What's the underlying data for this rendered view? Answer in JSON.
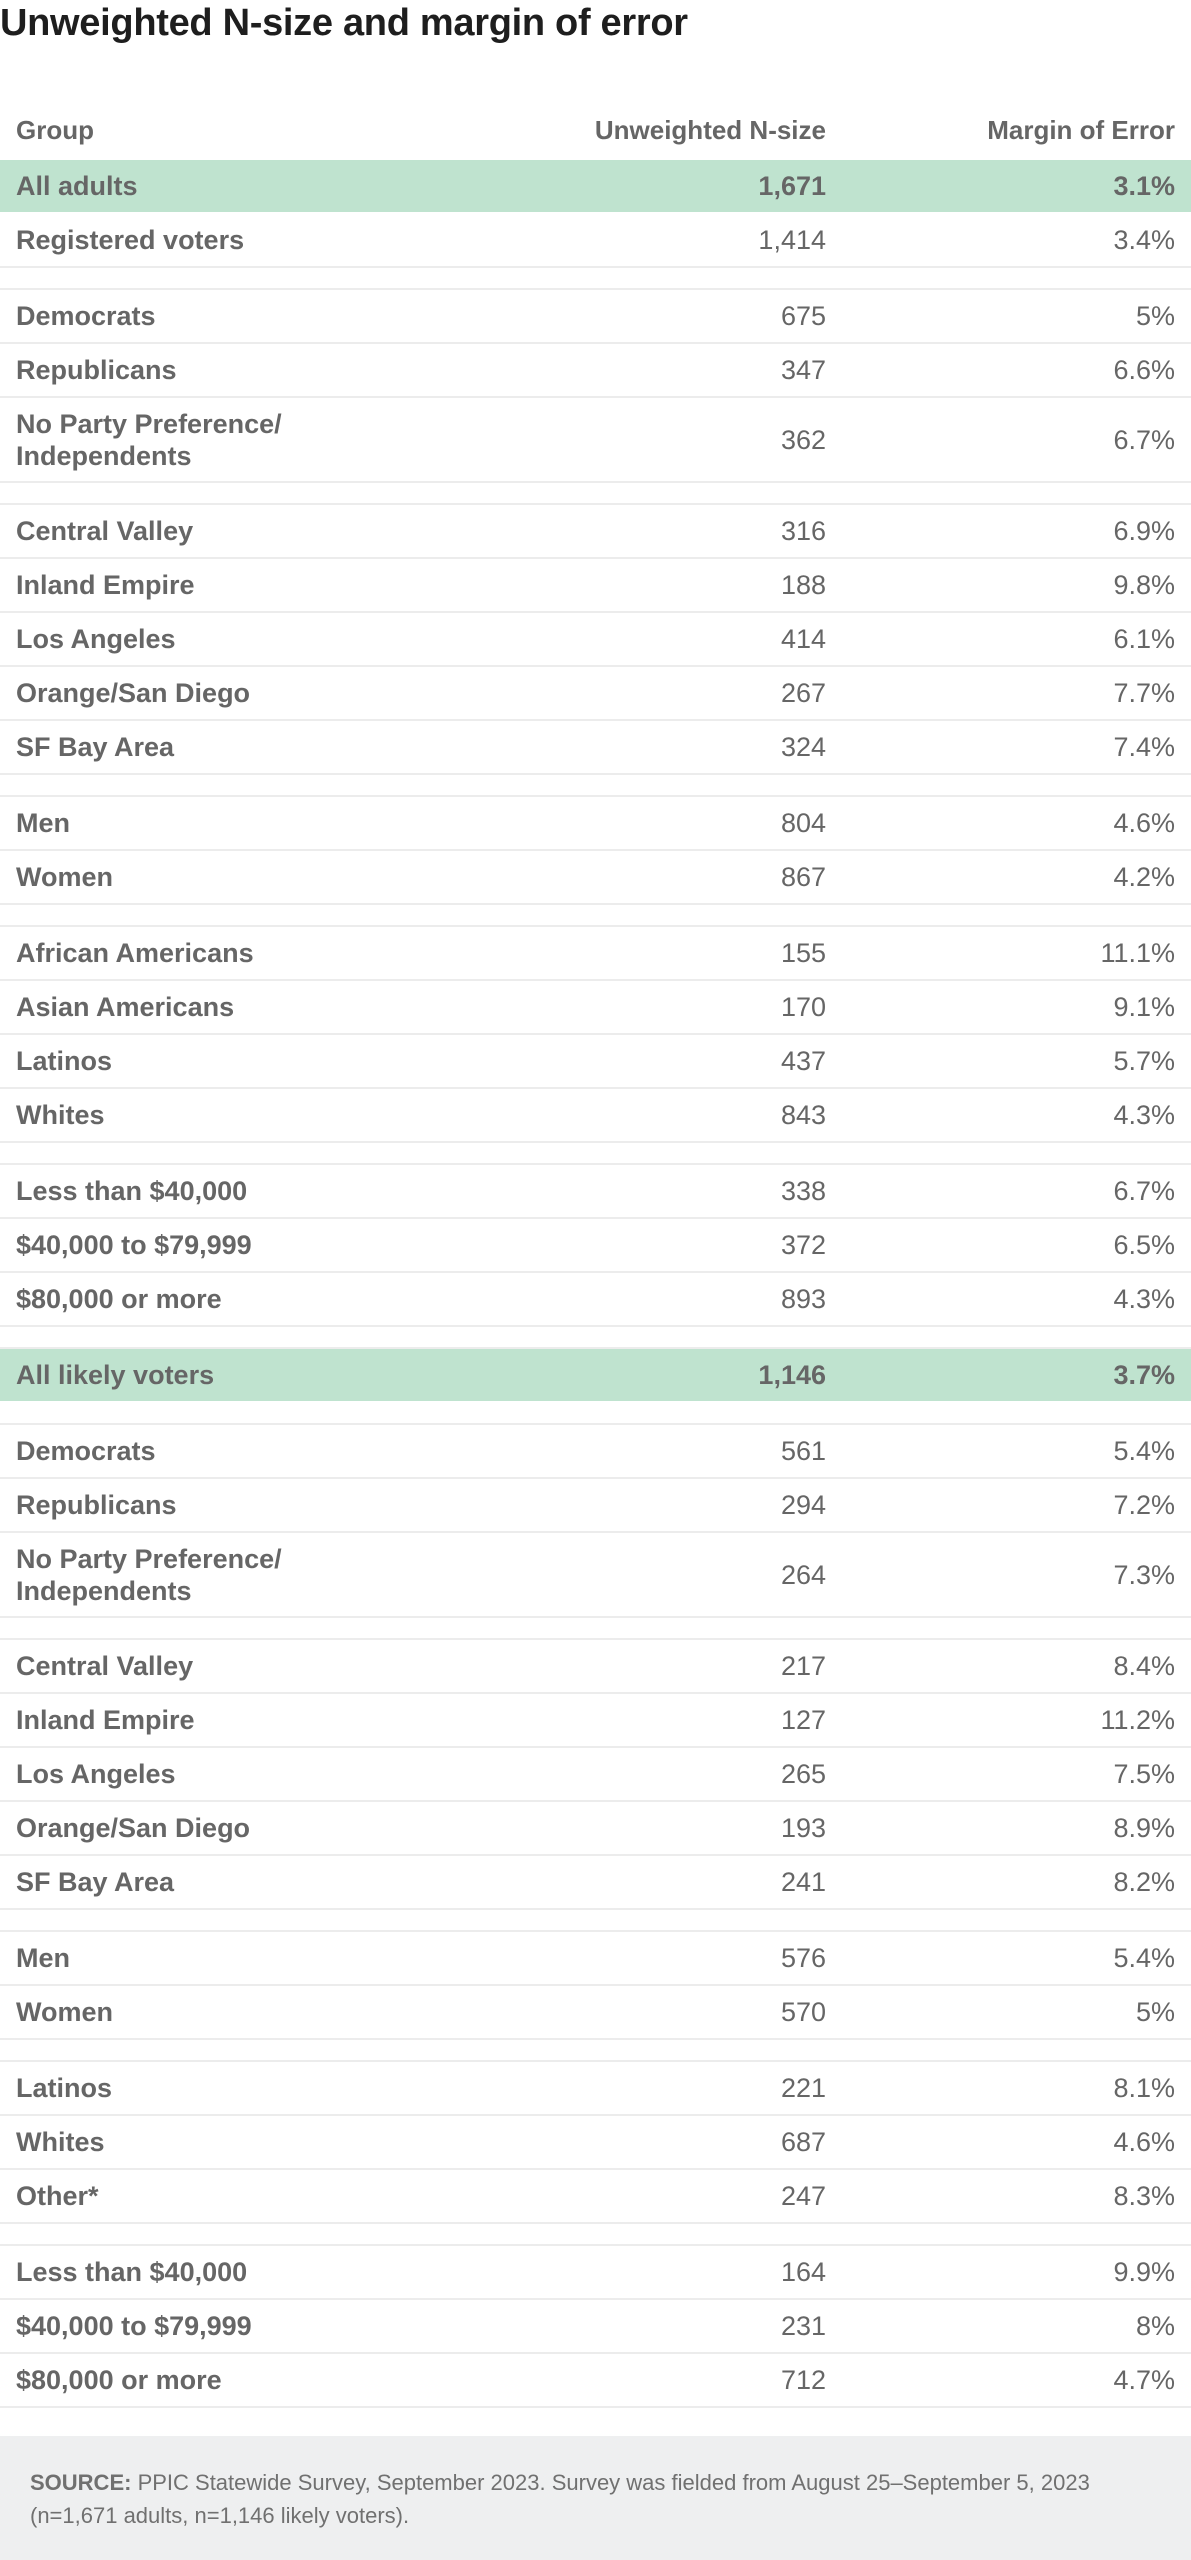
{
  "title": "Unweighted N-size and margin of error",
  "columns": {
    "group": "Group",
    "n": "Unweighted N-size",
    "moe": "Margin of Error"
  },
  "rows": [
    {
      "group": "All adults",
      "n": "1,671",
      "moe": "3.1%",
      "highlight": true
    },
    {
      "group": "Registered voters",
      "n": "1,414",
      "moe": "3.4%"
    },
    {
      "spacer": true
    },
    {
      "group": "Democrats",
      "n": "675",
      "moe": "5%"
    },
    {
      "group": "Republicans",
      "n": "347",
      "moe": "6.6%"
    },
    {
      "group": "No Party Preference/\nIndependents",
      "n": "362",
      "moe": "6.7%",
      "tall": true
    },
    {
      "spacer": true
    },
    {
      "group": "Central Valley",
      "n": "316",
      "moe": "6.9%"
    },
    {
      "group": "Inland Empire",
      "n": "188",
      "moe": "9.8%"
    },
    {
      "group": "Los Angeles",
      "n": "414",
      "moe": "6.1%"
    },
    {
      "group": "Orange/San Diego",
      "n": "267",
      "moe": "7.7%"
    },
    {
      "group": "SF Bay Area",
      "n": "324",
      "moe": "7.4%"
    },
    {
      "spacer": true
    },
    {
      "group": "Men",
      "n": "804",
      "moe": "4.6%"
    },
    {
      "group": "Women",
      "n": "867",
      "moe": "4.2%"
    },
    {
      "spacer": true
    },
    {
      "group": "African Americans",
      "n": "155",
      "moe": "11.1%"
    },
    {
      "group": "Asian Americans",
      "n": "170",
      "moe": "9.1%"
    },
    {
      "group": "Latinos",
      "n": "437",
      "moe": "5.7%"
    },
    {
      "group": "Whites",
      "n": "843",
      "moe": "4.3%"
    },
    {
      "spacer": true
    },
    {
      "group": "Less than $40,000",
      "n": "338",
      "moe": "6.7%"
    },
    {
      "group": "$40,000 to $79,999",
      "n": "372",
      "moe": "6.5%"
    },
    {
      "group": "$80,000 or more",
      "n": "893",
      "moe": "4.3%"
    },
    {
      "spacer": true
    },
    {
      "group": "All likely voters",
      "n": "1,146",
      "moe": "3.7%",
      "highlight": true
    },
    {
      "spacer": true
    },
    {
      "group": "Democrats",
      "n": "561",
      "moe": "5.4%"
    },
    {
      "group": "Republicans",
      "n": "294",
      "moe": "7.2%"
    },
    {
      "group": "No Party Preference/\nIndependents",
      "n": "264",
      "moe": "7.3%",
      "tall": true
    },
    {
      "spacer": true
    },
    {
      "group": "Central Valley",
      "n": "217",
      "moe": "8.4%"
    },
    {
      "group": "Inland Empire",
      "n": "127",
      "moe": "11.2%"
    },
    {
      "group": "Los Angeles",
      "n": "265",
      "moe": "7.5%"
    },
    {
      "group": "Orange/San Diego",
      "n": "193",
      "moe": "8.9%"
    },
    {
      "group": "SF Bay Area",
      "n": "241",
      "moe": "8.2%"
    },
    {
      "spacer": true
    },
    {
      "group": "Men",
      "n": "576",
      "moe": "5.4%"
    },
    {
      "group": "Women",
      "n": "570",
      "moe": "5%"
    },
    {
      "spacer": true
    },
    {
      "group": "Latinos",
      "n": "221",
      "moe": "8.1%"
    },
    {
      "group": "Whites",
      "n": "687",
      "moe": "4.6%"
    },
    {
      "group": "Other*",
      "n": "247",
      "moe": "8.3%"
    },
    {
      "spacer": true
    },
    {
      "group": "Less than $40,000",
      "n": "164",
      "moe": "9.9%"
    },
    {
      "group": "$40,000 to $79,999",
      "n": "231",
      "moe": "8%"
    },
    {
      "group": "$80,000 or more",
      "n": "712",
      "moe": "4.7%"
    }
  ],
  "source": {
    "label": "SOURCE:",
    "text": " PPIC Statewide Survey, September 2023. Survey was fielded from August 25–September 5, 2023 (n=1,671 adults, n=1,146 likely voters)."
  }
}
